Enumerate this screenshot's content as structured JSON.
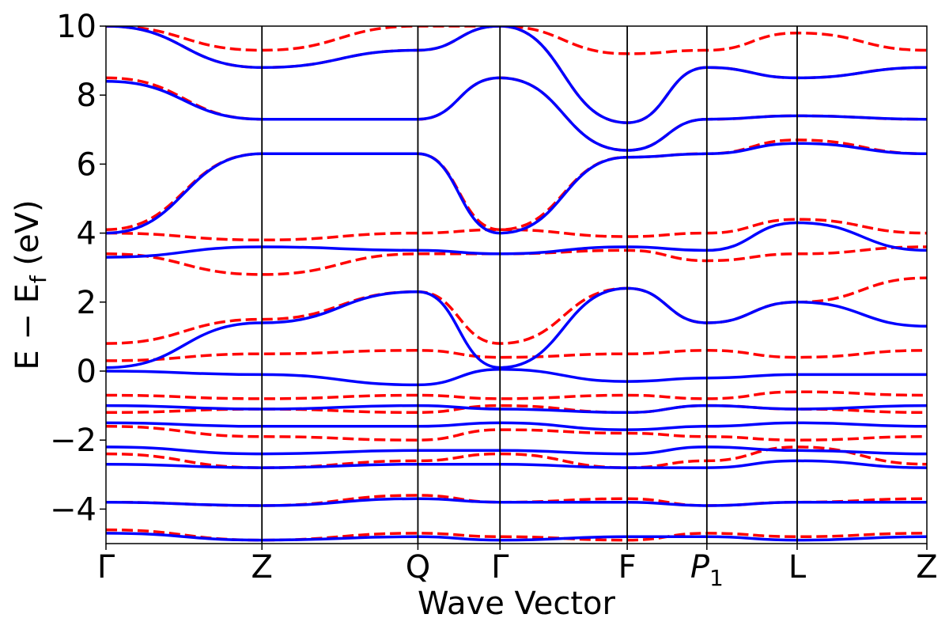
{
  "chart_data": {
    "type": "line",
    "xlabel": "Wave Vector",
    "ylabel": "E − E",
    "ylabel_subscript": "f",
    "ylabel_unit": " (eV)",
    "ylim": [
      -5,
      10
    ],
    "yticks": [
      -4,
      -2,
      0,
      2,
      4,
      6,
      8,
      10
    ],
    "ytick_labels": [
      "−4",
      "−2",
      "0",
      "2",
      "4",
      "6",
      "8",
      "10"
    ],
    "kpoints": [
      {
        "label": "Γ",
        "sub": "",
        "x": 0.0
      },
      {
        "label": "Z",
        "sub": "",
        "x": 0.19
      },
      {
        "label": "Q",
        "sub": "",
        "x": 0.38
      },
      {
        "label": "Γ",
        "sub": "",
        "x": 0.48
      },
      {
        "label": "F",
        "sub": "",
        "x": 0.635
      },
      {
        "label": "P",
        "sub": "1",
        "x": 0.732
      },
      {
        "label": "L",
        "sub": "",
        "x": 0.842
      },
      {
        "label": "Z",
        "sub": "",
        "x": 1.0
      }
    ],
    "grid": false,
    "legend": "none",
    "colors": {
      "dft": "#ff0000",
      "model": "#0000ff",
      "axes": "#000000"
    },
    "series": [
      {
        "style": "dashed",
        "color": "#ff0000",
        "bands": [
          [
            -4.6,
            -4.9,
            -4.7,
            -4.8,
            -4.9,
            -4.7,
            -4.8,
            -4.7
          ],
          [
            -3.8,
            -3.9,
            -3.6,
            -3.8,
            -3.7,
            -3.9,
            -3.8,
            -3.7
          ],
          [
            -2.4,
            -2.8,
            -2.6,
            -2.4,
            -2.8,
            -2.6,
            -2.2,
            -2.7
          ],
          [
            -1.6,
            -1.9,
            -2.0,
            -1.7,
            -1.8,
            -1.9,
            -2.0,
            -1.9
          ],
          [
            -1.2,
            -1.1,
            -1.2,
            -1.0,
            -1.2,
            -1.0,
            -1.1,
            -1.2
          ],
          [
            -0.7,
            -0.8,
            -0.7,
            -0.8,
            -0.7,
            -0.8,
            -0.6,
            -0.7
          ],
          [
            0.3,
            0.5,
            0.6,
            0.4,
            0.5,
            0.6,
            0.4,
            0.6
          ],
          [
            0.8,
            1.5,
            2.3,
            0.8,
            2.4,
            1.4,
            2.0,
            2.7
          ],
          [
            3.4,
            2.8,
            3.4,
            3.4,
            3.5,
            3.2,
            3.4,
            3.6
          ],
          [
            4.0,
            3.8,
            4.0,
            4.1,
            3.9,
            4.0,
            4.4,
            4.0
          ],
          [
            4.1,
            6.3,
            6.3,
            4.1,
            6.2,
            6.3,
            6.7,
            6.3
          ],
          [
            8.5,
            7.3,
            7.3,
            8.5,
            6.4,
            7.3,
            7.4,
            7.3
          ],
          [
            10.0,
            8.8,
            9.3,
            10.0,
            7.2,
            8.8,
            8.5,
            8.8
          ],
          [
            10.0,
            9.3,
            10.0,
            10.0,
            9.2,
            9.3,
            9.8,
            9.3
          ]
        ]
      },
      {
        "style": "solid",
        "color": "#0000ff",
        "bands": [
          [
            -4.7,
            -4.9,
            -4.8,
            -4.9,
            -4.8,
            -4.8,
            -4.9,
            -4.8
          ],
          [
            -3.8,
            -3.9,
            -3.7,
            -3.8,
            -3.8,
            -3.9,
            -3.8,
            -3.8
          ],
          [
            -2.7,
            -2.8,
            -2.7,
            -2.7,
            -2.8,
            -2.8,
            -2.6,
            -2.8
          ],
          [
            -2.2,
            -2.4,
            -2.3,
            -2.3,
            -2.4,
            -2.2,
            -2.3,
            -2.4
          ],
          [
            -1.5,
            -1.6,
            -1.6,
            -1.5,
            -1.7,
            -1.6,
            -1.5,
            -1.6
          ],
          [
            -1.0,
            -1.1,
            -1.0,
            -1.1,
            -1.2,
            -1.0,
            -1.1,
            -1.0
          ],
          [
            0.0,
            -0.1,
            -0.4,
            0.05,
            -0.3,
            -0.2,
            -0.1,
            -0.1
          ],
          [
            0.1,
            1.4,
            2.3,
            0.1,
            2.4,
            1.4,
            2.0,
            1.3
          ],
          [
            3.3,
            3.6,
            3.5,
            3.4,
            3.6,
            3.5,
            4.3,
            3.5
          ],
          [
            4.0,
            6.3,
            6.3,
            4.0,
            6.2,
            6.3,
            6.6,
            6.3
          ],
          [
            8.4,
            7.3,
            7.3,
            8.5,
            6.4,
            7.3,
            7.4,
            7.3
          ],
          [
            10.0,
            8.8,
            9.3,
            10.0,
            7.2,
            8.8,
            8.5,
            8.8
          ]
        ]
      }
    ]
  }
}
